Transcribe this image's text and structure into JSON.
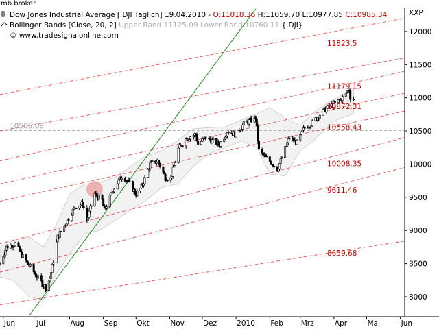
{
  "window": {
    "title": "mb.broker"
  },
  "chart_data": {
    "type": "candlestick",
    "header": {
      "instrument_label": "Dow Jones Industrial Average [.DJI  Täglich]",
      "date": "19.04.2010",
      "open": "O:11018.36",
      "high": "H:11059.70",
      "low": "L:10977.85",
      "close": "C:10985.34",
      "bb_prefix": "Bollinger Bands [Close, 20, 2]",
      "bb_upper": "Upper Band 11125.09",
      "bb_lower": "Lower Band 10760.11",
      "bb_symbol": "{.DJI}",
      "website": "© www.tradesignalonline.com"
    },
    "symbol_label": "XXP",
    "ylim": [
      7700,
      12350
    ],
    "y_ticks": [
      12000,
      11500,
      11000,
      10500,
      10000,
      9500,
      9000,
      8500,
      8000
    ],
    "x_axis_labels": [
      "Jun",
      "Jul",
      "Aug",
      "Sep",
      "Okt",
      "Nov",
      "Dez",
      "2010",
      "Feb",
      "Mrz",
      "Apr",
      "Mai",
      "Jun"
    ],
    "x_axis_months": [
      "2009-06-01",
      "2009-07-01",
      "2009-08-01",
      "2009-09-01",
      "2009-10-01",
      "2009-11-01",
      "2009-12-01",
      "2010-01-01",
      "2010-02-01",
      "2010-03-01",
      "2010-04-01",
      "2010-05-01",
      "2010-06-01"
    ],
    "x_range": [
      "2009-05-29",
      "2010-06-05"
    ],
    "reference_line": {
      "label": "10505.08",
      "value": 10505.08
    },
    "channel_labels": [
      "11823.5",
      "11179.15",
      "10872.31",
      "10558.43",
      "10008.35",
      "9611.46",
      "8659.68"
    ],
    "channel_label_values": [
      11823.5,
      11179.15,
      10872.31,
      10558.43,
      10008.35,
      9611.46,
      8659.68
    ],
    "channel_lines": [
      {
        "start": [
          "2009-05-29",
          11050
        ],
        "end": [
          "2010-06-05",
          12200
        ]
      },
      {
        "start": [
          "2009-05-29",
          10500
        ],
        "end": [
          "2010-06-05",
          11600
        ]
      },
      {
        "start": [
          "2009-05-29",
          10050
        ],
        "end": [
          "2010-06-05",
          11400
        ]
      },
      {
        "start": [
          "2009-05-29",
          9700
        ],
        "end": [
          "2010-06-05",
          11070
        ]
      },
      {
        "start": [
          "2009-05-29",
          9440
        ],
        "end": [
          "2010-06-05",
          10800
        ]
      },
      {
        "start": [
          "2009-05-29",
          8800
        ],
        "end": [
          "2010-06-05",
          10400
        ]
      },
      {
        "start": [
          "2009-05-29",
          8370
        ],
        "end": [
          "2010-06-05",
          9950
        ]
      },
      {
        "start": [
          "2009-05-29",
          7880
        ],
        "end": [
          "2010-06-05",
          8840
        ]
      }
    ],
    "trendline": {
      "start": [
        "2009-06-25",
        7720
      ],
      "end": [
        "2010-01-19",
        12340
      ]
    },
    "highlight": {
      "date": "2009-08-24",
      "value": 9620
    },
    "close_path": [
      [
        "2009-05-29",
        8500
      ],
      [
        "2009-06-04",
        8750
      ],
      [
        "2009-06-12",
        8800
      ],
      [
        "2009-06-19",
        8600
      ],
      [
        "2009-06-26",
        8450
      ],
      [
        "2009-07-02",
        8300
      ],
      [
        "2009-07-10",
        8140
      ],
      [
        "2009-07-14",
        8280
      ],
      [
        "2009-07-21",
        8900
      ],
      [
        "2009-07-28",
        9100
      ],
      [
        "2009-08-04",
        9300
      ],
      [
        "2009-08-07",
        9370
      ],
      [
        "2009-08-13",
        9400
      ],
      [
        "2009-08-17",
        9150
      ],
      [
        "2009-08-24",
        9550
      ],
      [
        "2009-08-31",
        9450
      ],
      [
        "2009-09-02",
        9300
      ],
      [
        "2009-09-10",
        9620
      ],
      [
        "2009-09-18",
        9820
      ],
      [
        "2009-09-23",
        9750
      ],
      [
        "2009-10-01",
        9550
      ],
      [
        "2009-10-06",
        9650
      ],
      [
        "2009-10-14",
        10000
      ],
      [
        "2009-10-21",
        10050
      ],
      [
        "2009-10-28",
        9800
      ],
      [
        "2009-11-02",
        9780
      ],
      [
        "2009-11-09",
        10230
      ],
      [
        "2009-11-17",
        10400
      ],
      [
        "2009-11-25",
        10450
      ],
      [
        "2009-11-27",
        10300
      ],
      [
        "2009-12-04",
        10400
      ],
      [
        "2009-12-10",
        10350
      ],
      [
        "2009-12-17",
        10300
      ],
      [
        "2009-12-24",
        10500
      ],
      [
        "2009-12-31",
        10450
      ],
      [
        "2010-01-08",
        10600
      ],
      [
        "2010-01-19",
        10700
      ],
      [
        "2010-01-22",
        10200
      ],
      [
        "2010-01-28",
        10100
      ],
      [
        "2010-02-04",
        10000
      ],
      [
        "2010-02-08",
        9920
      ],
      [
        "2010-02-12",
        10100
      ],
      [
        "2010-02-19",
        10400
      ],
      [
        "2010-02-26",
        10320
      ],
      [
        "2010-03-05",
        10550
      ],
      [
        "2010-03-12",
        10620
      ],
      [
        "2010-03-19",
        10750
      ],
      [
        "2010-03-26",
        10850
      ],
      [
        "2010-04-01",
        10900
      ],
      [
        "2010-04-09",
        11000
      ],
      [
        "2010-04-15",
        11120
      ],
      [
        "2010-04-16",
        11010
      ],
      [
        "2010-04-19",
        10985
      ]
    ],
    "bb_upper_path": [
      [
        "2009-05-29",
        8750
      ],
      [
        "2009-06-10",
        8850
      ],
      [
        "2009-06-25",
        8900
      ],
      [
        "2009-07-08",
        8750
      ],
      [
        "2009-07-20",
        9100
      ],
      [
        "2009-08-01",
        9550
      ],
      [
        "2009-08-15",
        9700
      ],
      [
        "2009-08-28",
        9720
      ],
      [
        "2009-09-12",
        9800
      ],
      [
        "2009-09-25",
        9950
      ],
      [
        "2009-10-10",
        10120
      ],
      [
        "2009-10-25",
        10200
      ],
      [
        "2009-11-08",
        10350
      ],
      [
        "2009-11-22",
        10530
      ],
      [
        "2009-12-06",
        10550
      ],
      [
        "2009-12-22",
        10560
      ],
      [
        "2010-01-06",
        10670
      ],
      [
        "2010-01-20",
        10760
      ],
      [
        "2010-02-01",
        10850
      ],
      [
        "2010-02-15",
        10700
      ],
      [
        "2010-03-01",
        10580
      ],
      [
        "2010-03-15",
        10800
      ],
      [
        "2010-04-01",
        10980
      ],
      [
        "2010-04-19",
        11125.09
      ]
    ],
    "bb_lower_path": [
      [
        "2010-04-19",
        10760.11
      ],
      [
        "2010-04-01",
        10650
      ],
      [
        "2010-03-15",
        10380
      ],
      [
        "2010-03-01",
        10200
      ],
      [
        "2010-02-15",
        9820
      ],
      [
        "2010-02-01",
        9850
      ],
      [
        "2010-01-20",
        10250
      ],
      [
        "2010-01-06",
        10350
      ],
      [
        "2009-12-22",
        10250
      ],
      [
        "2009-12-06",
        10150
      ],
      [
        "2009-11-22",
        9950
      ],
      [
        "2009-11-08",
        9700
      ],
      [
        "2009-10-25",
        9650
      ],
      [
        "2009-10-10",
        9450
      ],
      [
        "2009-09-25",
        9300
      ],
      [
        "2009-09-12",
        9150
      ],
      [
        "2009-08-28",
        9000
      ],
      [
        "2009-08-15",
        8950
      ],
      [
        "2009-08-01",
        8650
      ],
      [
        "2009-07-20",
        8350
      ],
      [
        "2009-07-08",
        7950
      ],
      [
        "2009-06-25",
        8000
      ],
      [
        "2009-06-10",
        8250
      ],
      [
        "2009-05-29",
        8300
      ]
    ],
    "colors": {
      "channel": "#e06060",
      "channel_label": "#cc0000",
      "trendline": "#1f8a1f",
      "bb_fill": "#f2f2f2",
      "bb_edge": "#c8c8c8",
      "reference": "#b0b0b0",
      "candle": "#000000",
      "highlight": "#e88080"
    }
  }
}
